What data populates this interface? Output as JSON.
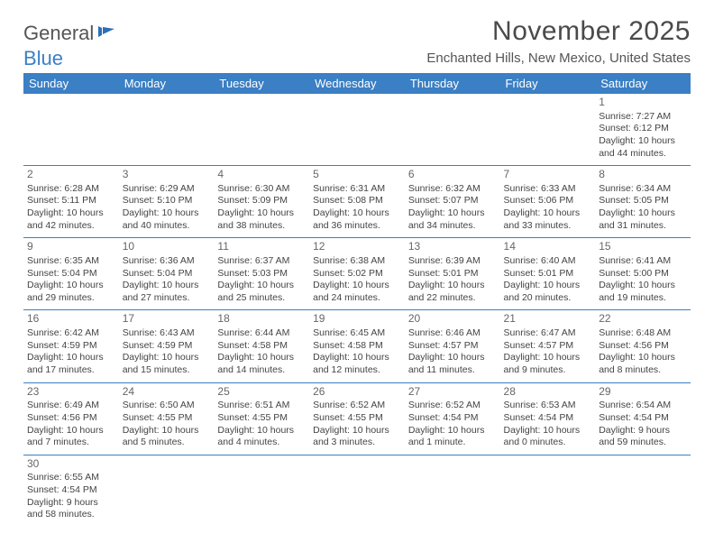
{
  "logo": {
    "word1": "General",
    "word2": "Blue"
  },
  "title": "November 2025",
  "location": "Enchanted Hills, New Mexico, United States",
  "header_bg": "#3b7fc4",
  "day_headers": [
    "Sunday",
    "Monday",
    "Tuesday",
    "Wednesday",
    "Thursday",
    "Friday",
    "Saturday"
  ],
  "weeks": [
    [
      null,
      null,
      null,
      null,
      null,
      null,
      {
        "d": "1",
        "sr": "7:27 AM",
        "ss": "6:12 PM",
        "dl": "10 hours and 44 minutes."
      }
    ],
    [
      {
        "d": "2",
        "sr": "6:28 AM",
        "ss": "5:11 PM",
        "dl": "10 hours and 42 minutes."
      },
      {
        "d": "3",
        "sr": "6:29 AM",
        "ss": "5:10 PM",
        "dl": "10 hours and 40 minutes."
      },
      {
        "d": "4",
        "sr": "6:30 AM",
        "ss": "5:09 PM",
        "dl": "10 hours and 38 minutes."
      },
      {
        "d": "5",
        "sr": "6:31 AM",
        "ss": "5:08 PM",
        "dl": "10 hours and 36 minutes."
      },
      {
        "d": "6",
        "sr": "6:32 AM",
        "ss": "5:07 PM",
        "dl": "10 hours and 34 minutes."
      },
      {
        "d": "7",
        "sr": "6:33 AM",
        "ss": "5:06 PM",
        "dl": "10 hours and 33 minutes."
      },
      {
        "d": "8",
        "sr": "6:34 AM",
        "ss": "5:05 PM",
        "dl": "10 hours and 31 minutes."
      }
    ],
    [
      {
        "d": "9",
        "sr": "6:35 AM",
        "ss": "5:04 PM",
        "dl": "10 hours and 29 minutes."
      },
      {
        "d": "10",
        "sr": "6:36 AM",
        "ss": "5:04 PM",
        "dl": "10 hours and 27 minutes."
      },
      {
        "d": "11",
        "sr": "6:37 AM",
        "ss": "5:03 PM",
        "dl": "10 hours and 25 minutes."
      },
      {
        "d": "12",
        "sr": "6:38 AM",
        "ss": "5:02 PM",
        "dl": "10 hours and 24 minutes."
      },
      {
        "d": "13",
        "sr": "6:39 AM",
        "ss": "5:01 PM",
        "dl": "10 hours and 22 minutes."
      },
      {
        "d": "14",
        "sr": "6:40 AM",
        "ss": "5:01 PM",
        "dl": "10 hours and 20 minutes."
      },
      {
        "d": "15",
        "sr": "6:41 AM",
        "ss": "5:00 PM",
        "dl": "10 hours and 19 minutes."
      }
    ],
    [
      {
        "d": "16",
        "sr": "6:42 AM",
        "ss": "4:59 PM",
        "dl": "10 hours and 17 minutes."
      },
      {
        "d": "17",
        "sr": "6:43 AM",
        "ss": "4:59 PM",
        "dl": "10 hours and 15 minutes."
      },
      {
        "d": "18",
        "sr": "6:44 AM",
        "ss": "4:58 PM",
        "dl": "10 hours and 14 minutes."
      },
      {
        "d": "19",
        "sr": "6:45 AM",
        "ss": "4:58 PM",
        "dl": "10 hours and 12 minutes."
      },
      {
        "d": "20",
        "sr": "6:46 AM",
        "ss": "4:57 PM",
        "dl": "10 hours and 11 minutes."
      },
      {
        "d": "21",
        "sr": "6:47 AM",
        "ss": "4:57 PM",
        "dl": "10 hours and 9 minutes."
      },
      {
        "d": "22",
        "sr": "6:48 AM",
        "ss": "4:56 PM",
        "dl": "10 hours and 8 minutes."
      }
    ],
    [
      {
        "d": "23",
        "sr": "6:49 AM",
        "ss": "4:56 PM",
        "dl": "10 hours and 7 minutes."
      },
      {
        "d": "24",
        "sr": "6:50 AM",
        "ss": "4:55 PM",
        "dl": "10 hours and 5 minutes."
      },
      {
        "d": "25",
        "sr": "6:51 AM",
        "ss": "4:55 PM",
        "dl": "10 hours and 4 minutes."
      },
      {
        "d": "26",
        "sr": "6:52 AM",
        "ss": "4:55 PM",
        "dl": "10 hours and 3 minutes."
      },
      {
        "d": "27",
        "sr": "6:52 AM",
        "ss": "4:54 PM",
        "dl": "10 hours and 1 minute."
      },
      {
        "d": "28",
        "sr": "6:53 AM",
        "ss": "4:54 PM",
        "dl": "10 hours and 0 minutes."
      },
      {
        "d": "29",
        "sr": "6:54 AM",
        "ss": "4:54 PM",
        "dl": "9 hours and 59 minutes."
      }
    ],
    [
      {
        "d": "30",
        "sr": "6:55 AM",
        "ss": "4:54 PM",
        "dl": "9 hours and 58 minutes."
      },
      null,
      null,
      null,
      null,
      null,
      null
    ]
  ],
  "labels": {
    "sunrise": "Sunrise:",
    "sunset": "Sunset:",
    "daylight": "Daylight:"
  }
}
